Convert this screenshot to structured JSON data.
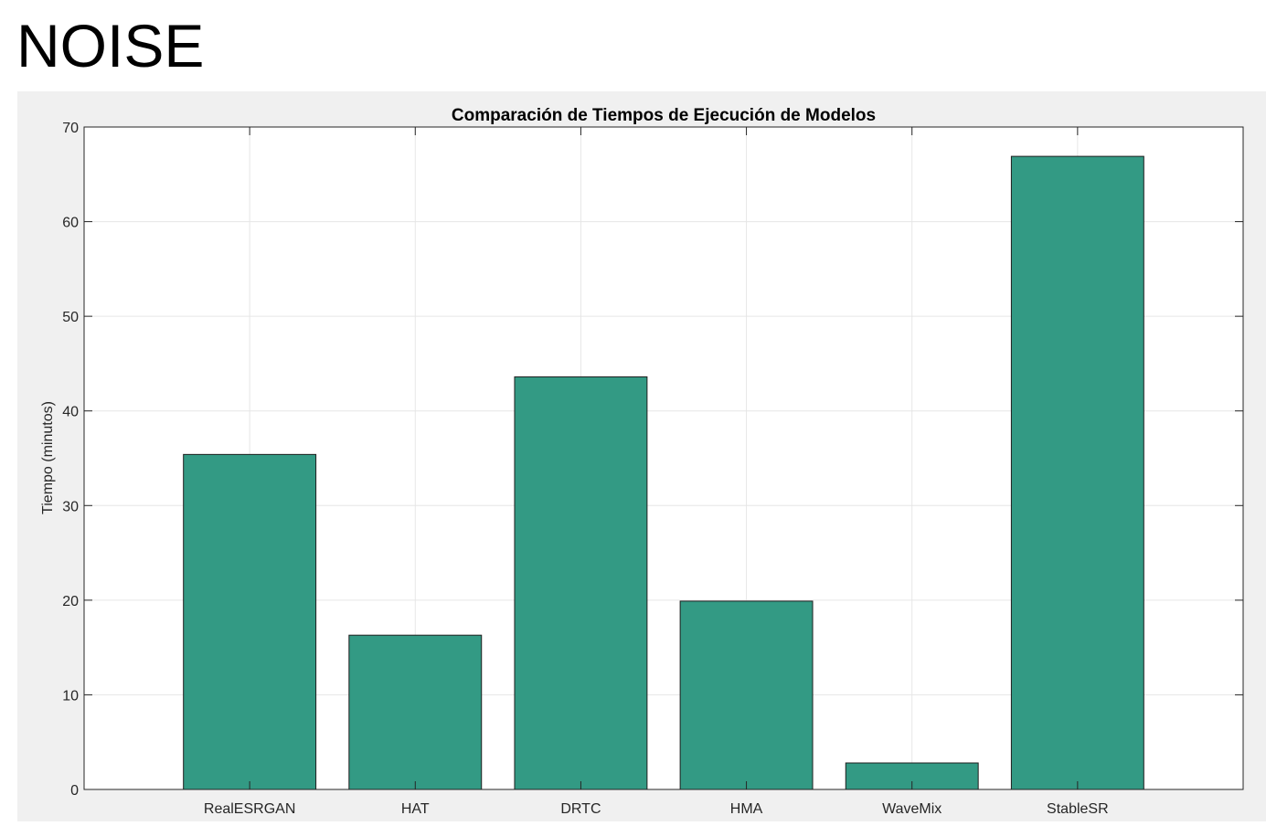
{
  "heading": "NOISE",
  "chart_data": {
    "type": "bar",
    "title": "Comparación de Tiempos de Ejecución de Modelos",
    "xlabel": "",
    "ylabel": "Tiempo (minutos)",
    "categories": [
      "RealESRGAN",
      "HAT",
      "DRTC",
      "HMA",
      "WaveMix",
      "StableSR"
    ],
    "values": [
      35.4,
      16.3,
      43.6,
      19.9,
      2.8,
      66.9
    ],
    "ylim": [
      0,
      70
    ],
    "yticks": [
      0,
      10,
      20,
      30,
      40,
      50,
      60,
      70
    ],
    "xlim": [
      0,
      7
    ],
    "grid": true,
    "bar_color": "#339a84",
    "bar_edge_color": "#1e1e1e",
    "figure_bg": "#f0f0f0"
  }
}
